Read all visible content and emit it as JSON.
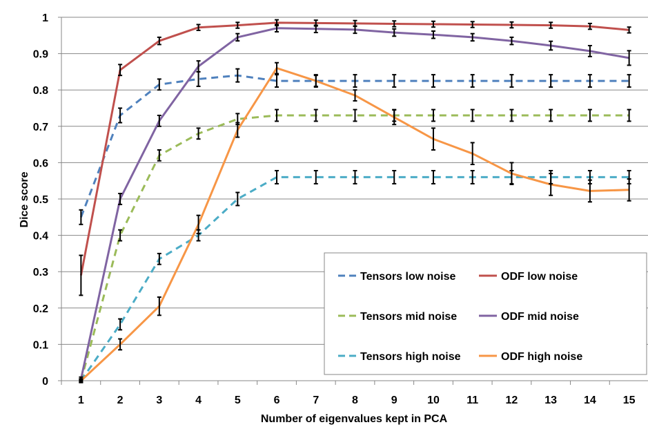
{
  "chart_data": {
    "type": "line",
    "title": "",
    "xlabel": "Number of eigenvalues kept in PCA",
    "ylabel": "Dice score",
    "x": [
      1,
      2,
      3,
      4,
      5,
      6,
      7,
      8,
      9,
      10,
      11,
      12,
      13,
      14,
      15
    ],
    "x_tick_labels": [
      "1",
      "2",
      "3",
      "4",
      "5",
      "6",
      "7",
      "8",
      "9",
      "10",
      "11",
      "12",
      "13",
      "14",
      "15"
    ],
    "y_tick_labels": [
      "0",
      "0.1",
      "0.2",
      "0.3",
      "0.4",
      "0.5",
      "0.6",
      "0.7",
      "0.8",
      "0.9",
      "1"
    ],
    "ylim": [
      0,
      1
    ],
    "grid": true,
    "legend_position": "bottom-right",
    "series": [
      {
        "name": "Tensors low noise",
        "color": "#4F81BD",
        "dashed": true,
        "values": [
          0.45,
          0.73,
          0.815,
          0.83,
          0.84,
          0.825,
          0.825,
          0.825,
          0.825,
          0.825,
          0.825,
          0.825,
          0.825,
          0.825,
          0.825
        ],
        "errors": [
          0.02,
          0.02,
          0.015,
          0.02,
          0.018,
          0.017,
          0.017,
          0.017,
          0.017,
          0.017,
          0.017,
          0.017,
          0.017,
          0.017,
          0.017
        ]
      },
      {
        "name": "ODF low noise",
        "color": "#C0504D",
        "dashed": false,
        "values": [
          0.29,
          0.855,
          0.935,
          0.972,
          0.978,
          0.985,
          0.984,
          0.983,
          0.982,
          0.981,
          0.98,
          0.979,
          0.978,
          0.975,
          0.965
        ],
        "errors": [
          0.055,
          0.015,
          0.01,
          0.008,
          0.008,
          0.008,
          0.008,
          0.008,
          0.008,
          0.008,
          0.008,
          0.008,
          0.008,
          0.008,
          0.008
        ]
      },
      {
        "name": "Tensors mid noise",
        "color": "#9BBB59",
        "dashed": true,
        "values": [
          0.0,
          0.4,
          0.62,
          0.68,
          0.72,
          0.73,
          0.73,
          0.73,
          0.73,
          0.73,
          0.73,
          0.73,
          0.73,
          0.73,
          0.73
        ],
        "errors": [
          0.005,
          0.015,
          0.015,
          0.015,
          0.015,
          0.016,
          0.016,
          0.016,
          0.016,
          0.016,
          0.016,
          0.016,
          0.016,
          0.016,
          0.016
        ]
      },
      {
        "name": "ODF mid noise",
        "color": "#8064A2",
        "dashed": false,
        "values": [
          0.005,
          0.5,
          0.715,
          0.865,
          0.945,
          0.97,
          0.968,
          0.966,
          0.958,
          0.952,
          0.945,
          0.935,
          0.922,
          0.907,
          0.888
        ],
        "errors": [
          0.005,
          0.015,
          0.015,
          0.015,
          0.01,
          0.01,
          0.01,
          0.01,
          0.01,
          0.01,
          0.01,
          0.01,
          0.012,
          0.015,
          0.02
        ]
      },
      {
        "name": "Tensors high noise",
        "color": "#4BACC6",
        "dashed": true,
        "values": [
          0.0,
          0.155,
          0.335,
          0.4,
          0.5,
          0.56,
          0.56,
          0.56,
          0.56,
          0.56,
          0.56,
          0.56,
          0.56,
          0.56,
          0.56
        ],
        "errors": [
          0.005,
          0.015,
          0.015,
          0.015,
          0.018,
          0.018,
          0.018,
          0.018,
          0.018,
          0.018,
          0.018,
          0.018,
          0.018,
          0.018,
          0.018
        ]
      },
      {
        "name": "ODF high noise",
        "color": "#F79646",
        "dashed": false,
        "values": [
          0.0,
          0.1,
          0.205,
          0.43,
          0.69,
          0.86,
          0.825,
          0.785,
          0.725,
          0.665,
          0.625,
          0.57,
          0.54,
          0.522,
          0.525
        ],
        "errors": [
          0.003,
          0.015,
          0.025,
          0.025,
          0.02,
          0.015,
          0.015,
          0.015,
          0.02,
          0.03,
          0.03,
          0.03,
          0.03,
          0.03,
          0.03
        ]
      }
    ]
  }
}
